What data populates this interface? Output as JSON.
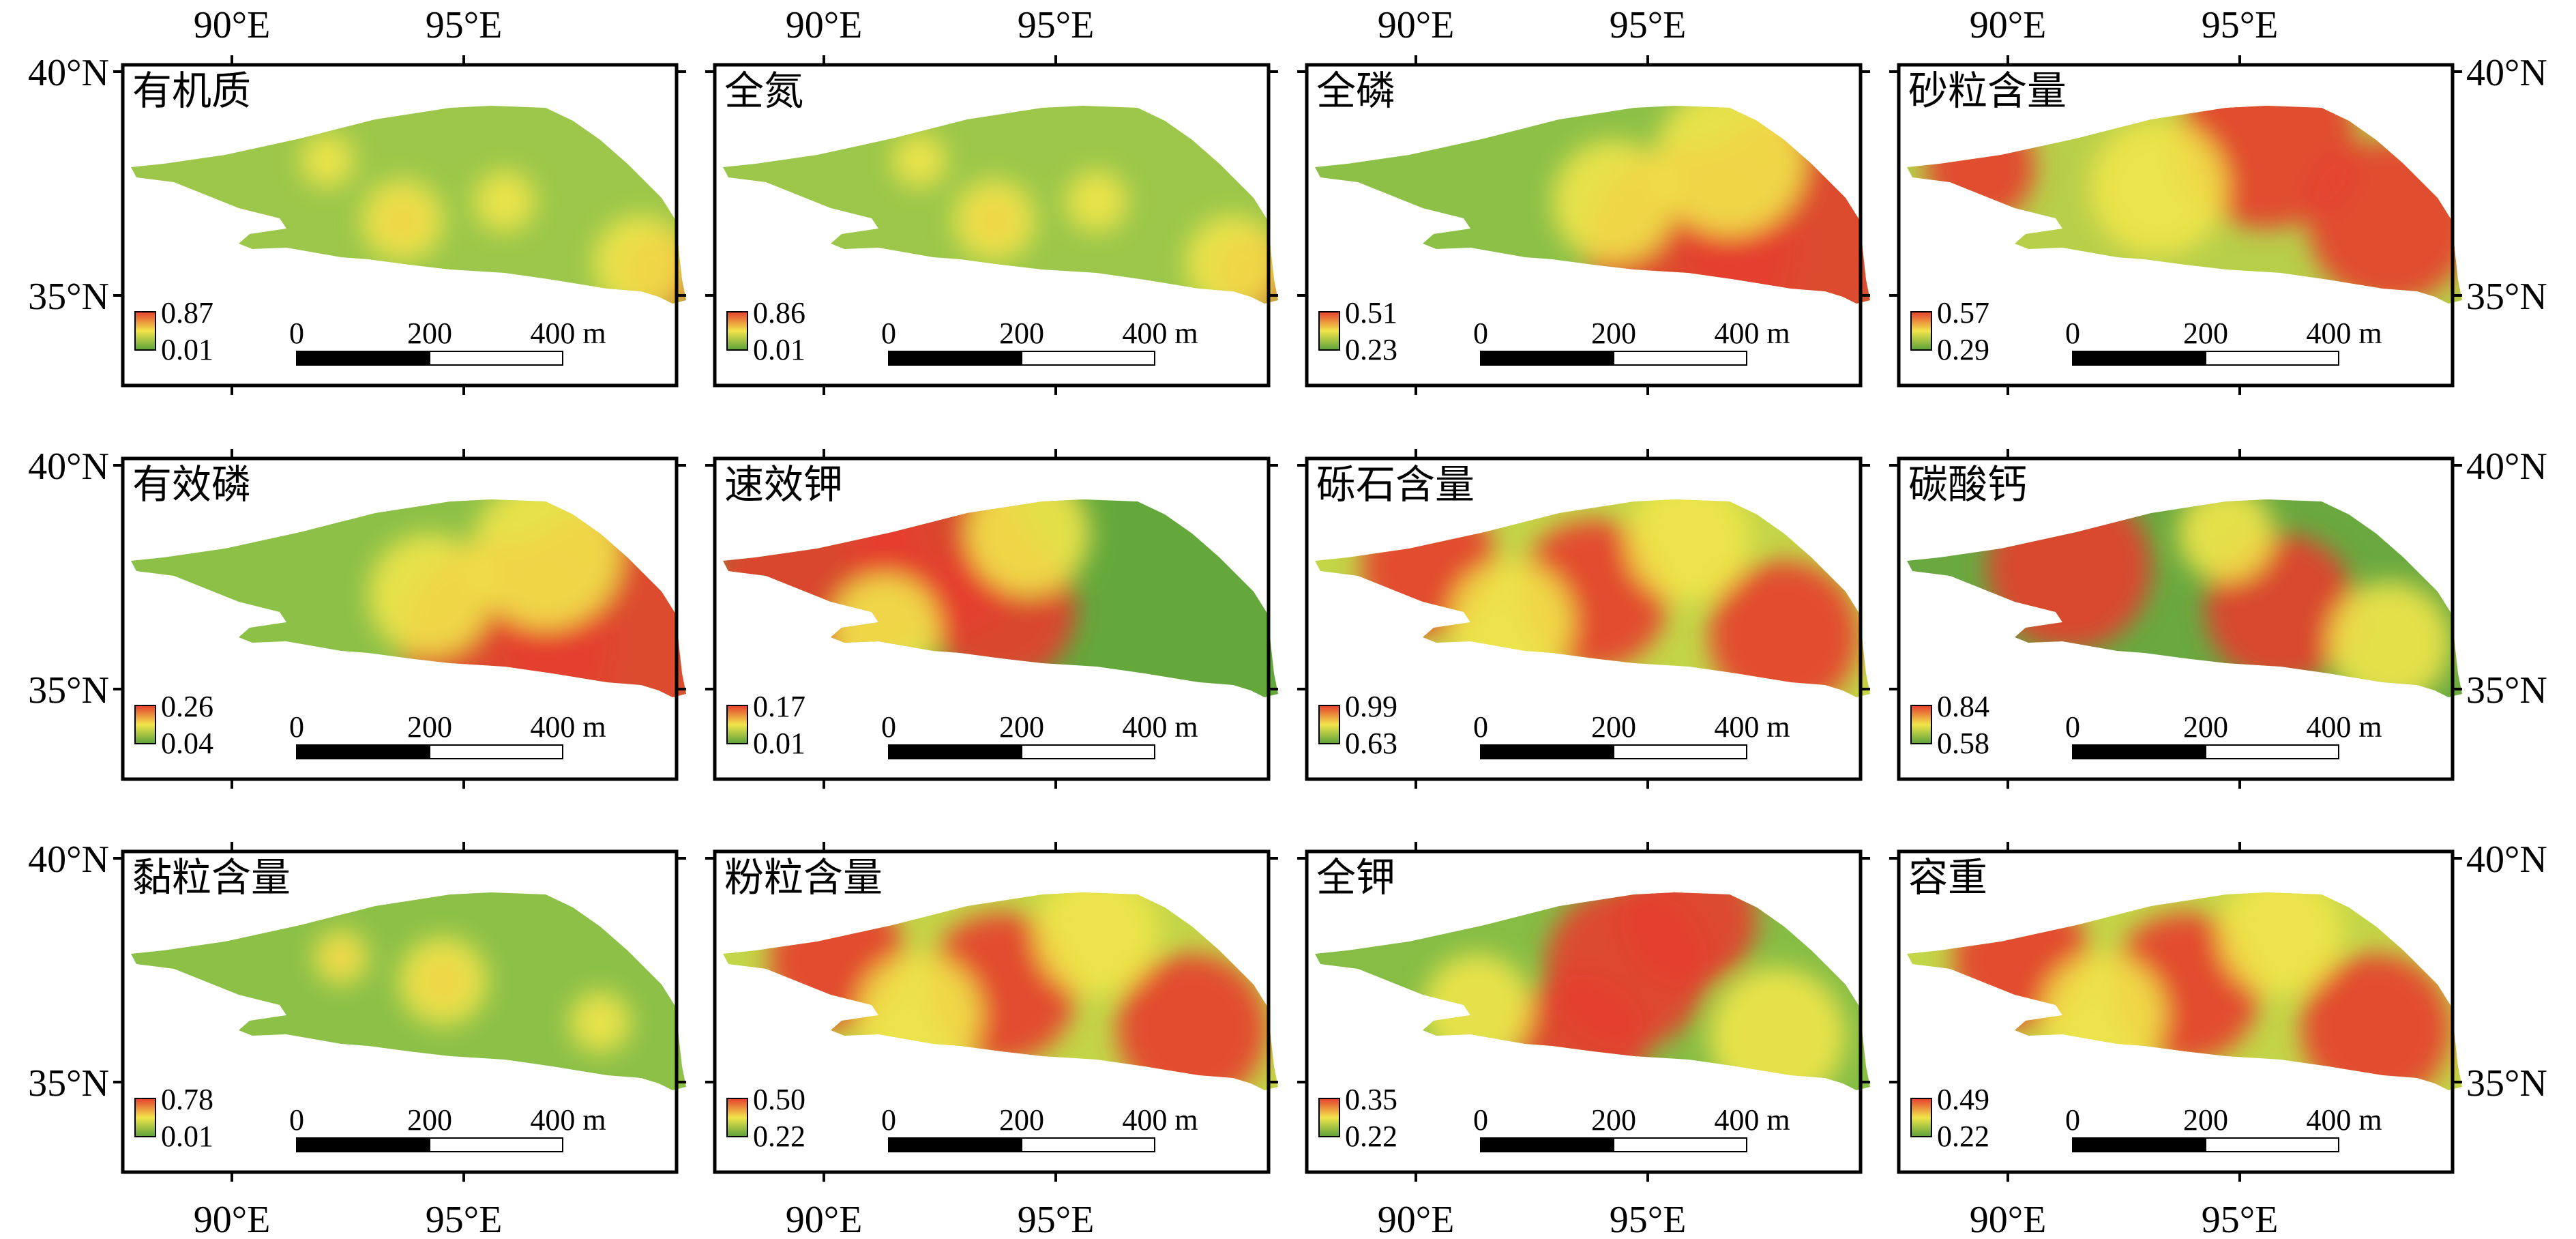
{
  "longitude_labels": [
    "90°E",
    "95°E"
  ],
  "latitude_labels": [
    "40°N",
    "35°N"
  ],
  "scale_bar": {
    "labels": [
      "0",
      "200",
      "400 m"
    ]
  },
  "colors": {
    "high": "#e53e2e",
    "mid": "#f1e54a",
    "low": "#5aa13a"
  },
  "panels": [
    {
      "title": "有机质",
      "max": "0.87",
      "min": "0.01",
      "pattern": "sparse-hotspots"
    },
    {
      "title": "全氮",
      "max": "0.86",
      "min": "0.01",
      "pattern": "sparse-hotspots"
    },
    {
      "title": "全磷",
      "max": "0.51",
      "min": "0.23",
      "pattern": "east-high"
    },
    {
      "title": "砂粒含量",
      "max": "0.57",
      "min": "0.29",
      "pattern": "north-east-high"
    },
    {
      "title": "有效磷",
      "max": "0.26",
      "min": "0.04",
      "pattern": "east-high"
    },
    {
      "title": "速效钾",
      "max": "0.17",
      "min": "0.01",
      "pattern": "west-high"
    },
    {
      "title": "砾石含量",
      "max": "0.99",
      "min": "0.63",
      "pattern": "mixed-high"
    },
    {
      "title": "碳酸钙",
      "max": "0.84",
      "min": "0.58",
      "pattern": "center-low"
    },
    {
      "title": "黏粒含量",
      "max": "0.78",
      "min": "0.01",
      "pattern": "center-hotspot"
    },
    {
      "title": "粉粒含量",
      "max": "0.50",
      "min": "0.22",
      "pattern": "mixed-high"
    },
    {
      "title": "全钾",
      "max": "0.35",
      "min": "0.22",
      "pattern": "center-north-high"
    },
    {
      "title": "容重",
      "max": "0.49",
      "min": "0.22",
      "pattern": "mixed-high"
    }
  ]
}
